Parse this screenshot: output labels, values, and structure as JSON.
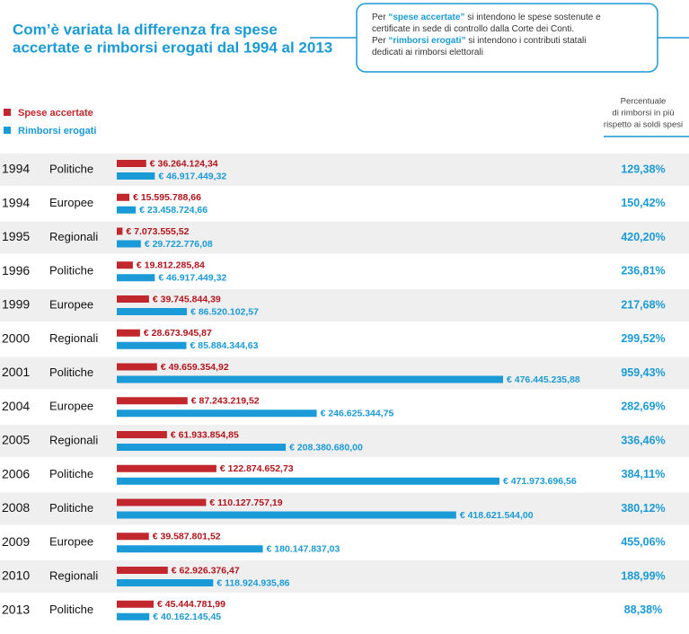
{
  "chart_data": {
    "type": "bar",
    "orientation": "horizontal",
    "title": [
      "Com’è variata la differenza fra spese",
      "accertate e rimborsi erogati dal 1994 al 2013"
    ],
    "notes": [
      {
        "lead": "Per",
        "term": "“spese accertate”",
        "lines": [
          "si intendono le spese sostenute e",
          "certificate in sede di controllo dalla Corte dei Conti."
        ]
      },
      {
        "lead": "Per",
        "term": "“rimborsi erogati”",
        "lines": [
          "si intendono i contributi statali",
          "dedicati ai rimborsi elettorali"
        ]
      }
    ],
    "categories": [
      "1994",
      "1994",
      "1995",
      "1996",
      "1999",
      "2000",
      "2001",
      "2004",
      "2005",
      "2006",
      "2008",
      "2009",
      "2010",
      "2013"
    ],
    "election_types": [
      "Politiche",
      "Europee",
      "Regionali",
      "Politiche",
      "Europee",
      "Regionali",
      "Politiche",
      "Europee",
      "Regionali",
      "Politiche",
      "Politiche",
      "Europee",
      "Regionali",
      "Politiche"
    ],
    "series": [
      {
        "name": "Spese accertate",
        "color": "#c1272d",
        "values": [
          36264124.34,
          15595788.66,
          7073555.52,
          19812285.84,
          39745844.39,
          28673945.87,
          49659354.92,
          87243219.52,
          61933854.85,
          122874652.73,
          110127757.19,
          39587801.52,
          62926376.47,
          45444781.99
        ],
        "value_labels": [
          "€ 36.264.124,34",
          "€ 15.595.788,66",
          "€ 7.073.555,52",
          "€ 19.812.285,84",
          "€ 39.745.844,39",
          "€ 28.673.945,87",
          "€ 49.659.354,92",
          "€ 87.243.219,52",
          "€ 61.933.854,85",
          "€ 122.874.652,73",
          "€ 110.127.757,19",
          "€ 39.587.801,52",
          "€ 62.926.376,47",
          "€ 45.444.781,99"
        ]
      },
      {
        "name": "Rimborsi erogati",
        "color": "#1a9ad6",
        "values": [
          46917449.32,
          23458724.66,
          29722776.08,
          46917449.32,
          86520102.57,
          85884344.63,
          476445235.88,
          246625344.75,
          208380680.0,
          471973696.56,
          418621544.0,
          180147837.03,
          118924935.86,
          40162145.45
        ],
        "value_labels": [
          "€ 46.917.449,32",
          "€ 23.458.724,66",
          "€ 29.722.776,08",
          "€ 46.917.449,32",
          "€ 86.520.102,57",
          "€ 85.884.344,63",
          "€ 476.445.235,88",
          "€ 246.625.344,75",
          "€ 208.380.680,00",
          "€ 471.973.696,56",
          "€ 418.621.544,00",
          "€ 180.147.837,03",
          "€ 118.924.935,86",
          "€ 40.162.145,45"
        ]
      }
    ],
    "percent": {
      "header": [
        "Percentuale",
        "di rimborsi in più",
        "rispetto ai soldi spesi"
      ],
      "values": [
        129.38,
        150.42,
        420.2,
        236.81,
        217.68,
        299.52,
        959.43,
        282.69,
        336.46,
        384.11,
        380.12,
        455.06,
        188.99,
        88.38
      ],
      "value_labels": [
        "129,38%",
        "150,42%",
        "420,20%",
        "236,81%",
        "217,68%",
        "299,52%",
        "959,43%",
        "282,69%",
        "336,46%",
        "384,11%",
        "380,12%",
        "455,06%",
        "188,99%",
        "88,38%"
      ]
    }
  }
}
